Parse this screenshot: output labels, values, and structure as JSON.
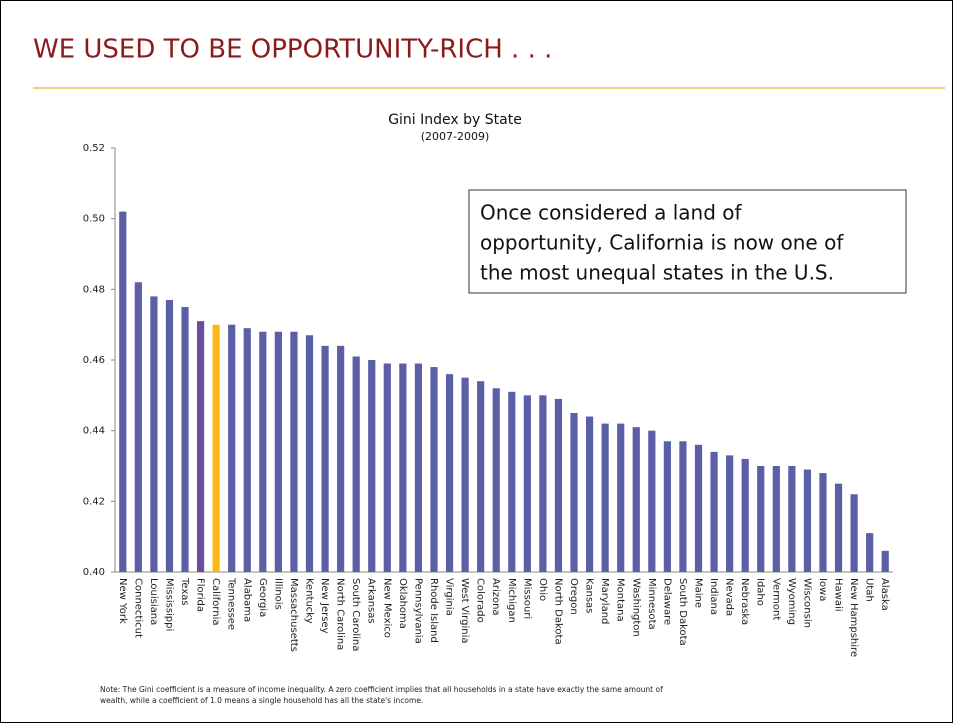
{
  "slide_title": "WE USED TO BE OPPORTUNITY-RICH . . .",
  "chart_data": {
    "type": "bar",
    "title": "Gini Index by State",
    "subtitle": "(2007-2009)",
    "categories": [
      "New York",
      "Connecticut",
      "Louisiana",
      "Mississippi",
      "Texas",
      "Florida",
      "California",
      "Tennessee",
      "Alabama",
      "Georgia",
      "Illinois",
      "Massachusetts",
      "Kentucky",
      "New Jersey",
      "North Carolina",
      "South Carolina",
      "Arkansas",
      "New Mexico",
      "Oklahoma",
      "Pennsylvania",
      "Rhode Island",
      "Virginia",
      "West Virginia",
      "Colorado",
      "Arizona",
      "Michigan",
      "Missouri",
      "Ohio",
      "North Dakota",
      "Oregon",
      "Kansas",
      "Maryland",
      "Montana",
      "Washington",
      "Minnesota",
      "Delaware",
      "South Dakota",
      "Maine",
      "Indiana",
      "Nevada",
      "Nebraska",
      "Idaho",
      "Vermont",
      "Wyoming",
      "Wisconsin",
      "Iowa",
      "Hawaii",
      "New Hampshire",
      "Utah",
      "Alaska"
    ],
    "values": [
      0.502,
      0.482,
      0.478,
      0.477,
      0.475,
      0.471,
      0.47,
      0.47,
      0.469,
      0.468,
      0.468,
      0.468,
      0.467,
      0.464,
      0.464,
      0.461,
      0.46,
      0.459,
      0.459,
      0.459,
      0.458,
      0.456,
      0.455,
      0.454,
      0.452,
      0.451,
      0.45,
      0.45,
      0.449,
      0.445,
      0.444,
      0.442,
      0.442,
      0.441,
      0.44,
      0.437,
      0.437,
      0.436,
      0.434,
      0.433,
      0.432,
      0.43,
      0.43,
      0.43,
      0.429,
      0.428,
      0.425,
      0.422,
      0.411,
      0.406
    ],
    "color": "#5a5fa6",
    "highlight_colors": {
      "California": "#fdb913",
      "Florida": "#6b4f9c"
    },
    "ylim": [
      0.4,
      0.52
    ],
    "yticks": [
      {
        "value": 0.4,
        "label": "0.40"
      },
      {
        "value": 0.42,
        "label": "0.42"
      },
      {
        "value": 0.44,
        "label": "0.44"
      },
      {
        "value": 0.46,
        "label": "0.46"
      },
      {
        "value": 0.48,
        "label": "0.48"
      },
      {
        "value": 0.5,
        "label": "0.50"
      },
      {
        "value": 0.52,
        "label": "0.52"
      }
    ],
    "grid": false,
    "annotation": [
      "Once considered a land of",
      "opportunity, California is now one of",
      "the most unequal states in the U.S."
    ]
  },
  "note": [
    "Note: The Gini coefficient is a measure of income inequality. A zero coefficient implies that all households in a state have exactly the same amount of",
    "wealth, while a coefficient of 1.0 means a single household has all the state's income."
  ]
}
